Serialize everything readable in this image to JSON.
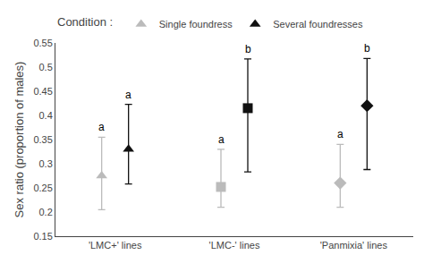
{
  "chart_data": {
    "type": "scatter",
    "categories": [
      "'LMC+' lines",
      "'LMC-' lines",
      "'Panmixia' lines"
    ],
    "series": [
      {
        "name": "Single foundress",
        "color": "#bbbbbb",
        "marker": [
          "triangle-up",
          "square",
          "diamond"
        ],
        "values": [
          0.275,
          0.252,
          0.26
        ],
        "ci_lower": [
          0.205,
          0.21,
          0.21
        ],
        "ci_upper": [
          0.355,
          0.33,
          0.34
        ],
        "letter_labels": [
          "a",
          "a",
          "a"
        ]
      },
      {
        "name": "Several foundresses",
        "color": "#111111",
        "marker": [
          "triangle-up",
          "square",
          "diamond"
        ],
        "values": [
          0.33,
          0.415,
          0.42
        ],
        "ci_lower": [
          0.258,
          0.283,
          0.288
        ],
        "ci_upper": [
          0.423,
          0.517,
          0.518
        ],
        "letter_labels": [
          "a",
          "b",
          "b"
        ]
      }
    ],
    "ylabel": "Sex ratio (proportion of males)",
    "ylim": [
      0.15,
      0.55
    ],
    "yticks": [
      0.15,
      0.2,
      0.25,
      0.3,
      0.35,
      0.4,
      0.45,
      0.5,
      0.55
    ],
    "legend_title": "Condition : ",
    "legend": "top left",
    "grid": false
  }
}
